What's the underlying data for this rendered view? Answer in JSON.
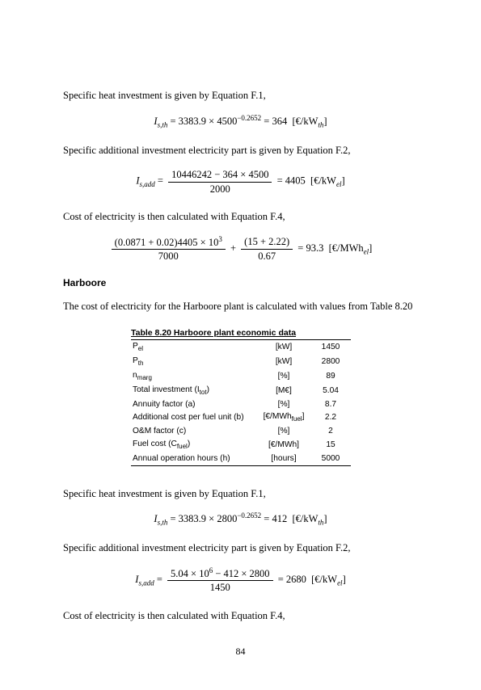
{
  "paragraphs": {
    "p1": "Specific heat investment is given by Equation F.1,",
    "p2": "Specific additional investment electricity part is given by Equation F.2,",
    "p3": "Cost of electricity is then calculated with Equation F.4,",
    "p4": "The cost of electricity for the Harboore plant is calculated with values from Table 8.20",
    "p5": "Specific heat investment is given by Equation F.1,",
    "p6": "Specific additional investment electricity part is given by Equation F.2,",
    "p7": "Cost of electricity is then calculated with Equation F.4,"
  },
  "section_heading": "Harboore",
  "equations": {
    "eq1": {
      "lhs_symbol": "I",
      "lhs_sub": "s,th",
      "body_left": " = 3383.9 × 4500",
      "exp": "−0.2652",
      "body_right": " = 364",
      "unit": "[€/kW",
      "unit_sub": "th",
      "unit_close": "]"
    },
    "eq2": {
      "lhs_symbol": "I",
      "lhs_sub": "s,add",
      "num": "10446242 − 364 × 4500",
      "den": "2000",
      "result": " = 4405",
      "unit": "[€/kW",
      "unit_sub": "el",
      "unit_close": "]"
    },
    "eq3": {
      "frac1_num_pre": "(0.0871 + 0.02)4405 × 10",
      "frac1_num_exp": "3",
      "frac1_den": "7000",
      "plus": " + ",
      "frac2_num": "(15 + 2.22)",
      "frac2_den": "0.67",
      "result": " = 93.3",
      "unit": "[€/MWh",
      "unit_sub": "el",
      "unit_close": "]"
    },
    "eq4": {
      "lhs_symbol": "I",
      "lhs_sub": "s,th",
      "body_left": " = 3383.9 × 2800",
      "exp": "−0.2652",
      "body_right": " = 412",
      "unit": "[€/kW",
      "unit_sub": "th",
      "unit_close": "]"
    },
    "eq5": {
      "lhs_symbol": "I",
      "lhs_sub": "s,add",
      "num_pre": "5.04 × 10",
      "num_exp": "6",
      "num_post": " − 412 × 2800",
      "den": "1450",
      "result": " = 2680",
      "unit": "[€/kW",
      "unit_sub": "el",
      "unit_close": "]"
    }
  },
  "table": {
    "title": "Table 8.20 Harboore plant  economic data",
    "rows": [
      {
        "param_pre": "P",
        "param_sub": "el",
        "param_post": "",
        "unit": "[kW]",
        "value": "1450"
      },
      {
        "param_pre": "P",
        "param_sub": "th",
        "param_post": "",
        "unit": "[kW]",
        "value": "2800"
      },
      {
        "param_pre": "n",
        "param_sub": "marg",
        "param_post": "",
        "unit": "[%]",
        "value": "89"
      },
      {
        "param_pre": "Total investment (I",
        "param_sub": "tot",
        "param_post": ")",
        "unit": "[M€]",
        "value": "5.04"
      },
      {
        "param_pre": "Annuity factor (a)",
        "param_sub": "",
        "param_post": "",
        "unit": "[%]",
        "value": "8.7"
      },
      {
        "param_pre": "Additional cost per fuel unit (b)",
        "param_sub": "",
        "param_post": "",
        "unit_pre": "[€/MWh",
        "unit_sub": "fuel",
        "unit_post": "]",
        "value": "2.2"
      },
      {
        "param_pre": "O&M factor (c)",
        "param_sub": "",
        "param_post": "",
        "unit": "[%]",
        "value": "2"
      },
      {
        "param_pre": "Fuel cost (C",
        "param_sub": "fuel",
        "param_post": ")",
        "unit": "[€/MWh]",
        "value": "15"
      },
      {
        "param_pre": "Annual operation hours (h)",
        "param_sub": "",
        "param_post": "",
        "unit": "[hours]",
        "value": "5000"
      }
    ]
  },
  "page_number": "84"
}
